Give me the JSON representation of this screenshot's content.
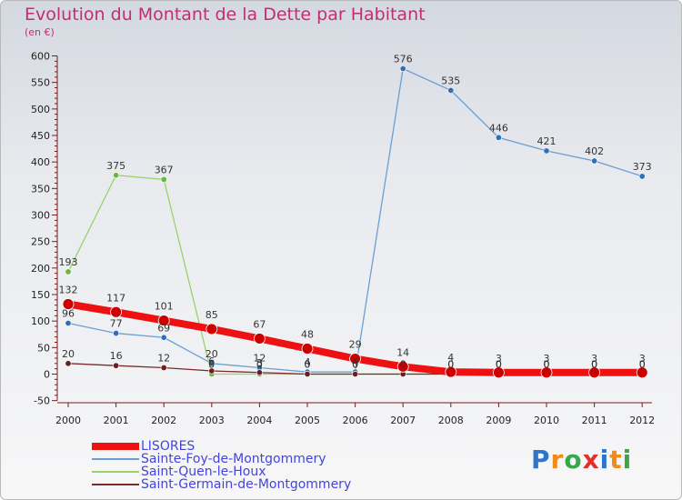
{
  "title": "Evolution du Montant de la Dette par Habitant",
  "subtitle": "(en €)",
  "logo": {
    "letters": [
      "P",
      "r",
      "o",
      "x",
      "i",
      "t",
      "i"
    ],
    "colors": [
      "#2f74c8",
      "#f08a1c",
      "#3aa64a",
      "#e0312c",
      "#2f74c8",
      "#f08a1c",
      "#3aa64a"
    ]
  },
  "chart_data": {
    "type": "line",
    "x": [
      "2000",
      "2001",
      "2002",
      "2003",
      "2004",
      "2005",
      "2006",
      "2007",
      "2008",
      "2009",
      "2010",
      "2011",
      "2012"
    ],
    "ylim": [
      -50,
      600
    ],
    "yticks": [
      "-50",
      "0",
      "50",
      "100",
      "150",
      "200",
      "250",
      "300",
      "350",
      "400",
      "450",
      "500",
      "550",
      "600"
    ],
    "grid": false,
    "legend_position": "bottom-left",
    "series": [
      {
        "name": "LISORES",
        "color": "#ee1111",
        "marker": "#cc0000",
        "width": 8,
        "r": 6,
        "values": [
          132,
          117,
          101,
          85,
          67,
          48,
          29,
          14,
          4,
          3,
          3,
          3,
          3
        ],
        "labels": [
          "132",
          "117",
          "101",
          "85",
          "67",
          "48",
          "29",
          "14",
          "4",
          "3",
          "3",
          "3",
          "3"
        ]
      },
      {
        "name": "Sainte-Foy-de-Montgommery",
        "color": "#6a9fd4",
        "marker": "#2f6fb8",
        "width": 1.3,
        "r": 3.2,
        "values": [
          96,
          77,
          69,
          20,
          12,
          4,
          4,
          576,
          535,
          446,
          421,
          402,
          373
        ],
        "labels": [
          "96",
          "77",
          "69",
          "20",
          "12",
          "4",
          "4",
          "576",
          "535",
          "446",
          "421",
          "402",
          "373"
        ]
      },
      {
        "name": "Saint-Quen-le-Houx",
        "color": "#9ad26a",
        "marker": "#68b83a",
        "width": 1.3,
        "r": 3.2,
        "values": [
          193,
          375,
          367,
          0,
          0,
          0,
          0,
          0,
          0,
          0,
          0,
          0,
          0
        ],
        "labels": [
          "193",
          "375",
          "367",
          "0",
          "0",
          "0",
          "0",
          "0",
          "0",
          "0",
          "0",
          "0",
          "0"
        ]
      },
      {
        "name": "Saint-Germain-de-Montgommery",
        "color": "#7a2a2a",
        "marker": "#6a1e1e",
        "width": 1.3,
        "r": 3.2,
        "values": [
          20,
          16,
          12,
          6,
          3,
          0,
          0,
          0,
          0,
          0,
          0,
          0,
          0
        ],
        "labels": [
          "20",
          "16",
          "12",
          "6",
          "3",
          "0",
          "0",
          "0",
          "0",
          "0",
          "0",
          "0",
          "0"
        ]
      }
    ]
  }
}
